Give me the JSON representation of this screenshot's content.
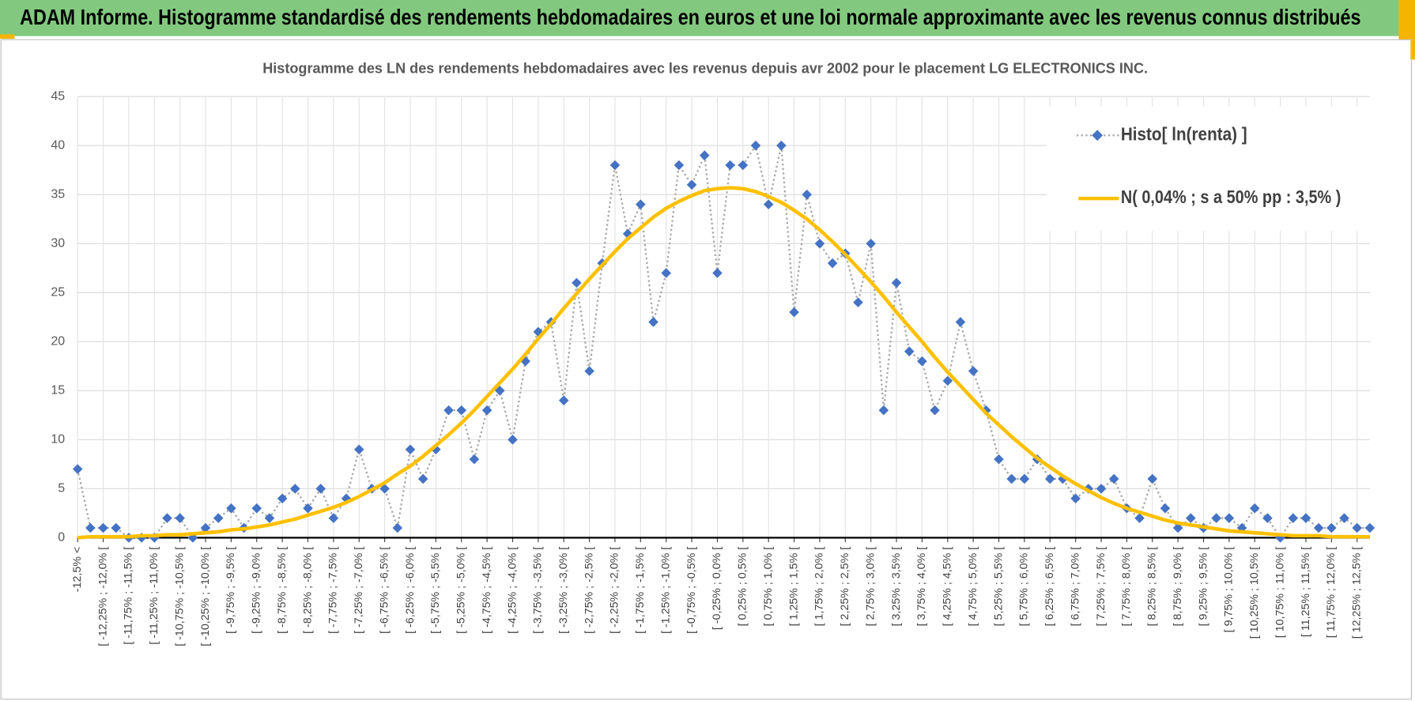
{
  "header": {
    "title": "ADAM Informe. Histogramme standardisé des rendements hebdomadaires en euros et une loi normale approximante avec les revenus connus distribués"
  },
  "chart_data": {
    "type": "line",
    "title": "Histogramme  des LN des rendements hebdomadaires avec les revenus depuis avr 2002 pour le placement LG ELECTRONICS INC.",
    "categories": [
      "-12,5% <",
      null,
      "[ -12,25% ; -12,0% [",
      null,
      "[ -11,75% ; -11,5% [",
      null,
      "[ -11,25% ; -11,0% [",
      null,
      "[ -10,75% ; -10,5% [",
      null,
      "[ -10,25% ; -10,0% [",
      null,
      "[ -9,75% ; -9,5% [",
      null,
      "[ -9,25% ; -9,0% [",
      null,
      "[ -8,75% ; -8,5% [",
      null,
      "[ -8,25% ; -8,0% [",
      null,
      "[ -7,75% ; -7,5% [",
      null,
      "[ -7,25% ; -7,0% [",
      null,
      "[ -6,75% ; -6,5% [",
      null,
      "[ -6,25% ; -6,0% [",
      null,
      "[ -5,75% ; -5,5% [",
      null,
      "[ -5,25% ; -5,0% [",
      null,
      "[ -4,75% ; -4,5% [",
      null,
      "[ -4,25% ; -4,0% [",
      null,
      "[ -3,75% ; -3,5% [",
      null,
      "[ -3,25% ; -3,0% [",
      null,
      "[ -2,75% ; -2,5% [",
      null,
      "[ -2,25% ; -2,0% [",
      null,
      "[ -1,75% ; -1,5% [",
      null,
      "[ -1,25% ; -1,0% [",
      null,
      "[ -0,75% ; -0,5% [",
      null,
      "[ -0,25% ; 0,0% [",
      null,
      "[ 0,25% ; 0,5% [",
      null,
      "[ 0,75% ; 1,0% [",
      null,
      "[ 1,25% ; 1,5% [",
      null,
      "[ 1,75% ; 2,0% [",
      null,
      "[ 2,25% ; 2,5% [",
      null,
      "[ 2,75% ; 3,0% [",
      null,
      "[ 3,25% ; 3,5% [",
      null,
      "[ 3,75% ; 4,0% [",
      null,
      "[ 4,25% ; 4,5% [",
      null,
      "[ 4,75% ; 5,0% [",
      null,
      "[ 5,25% ; 5,5% [",
      null,
      "[ 5,75% ; 6,0% [",
      null,
      "[ 6,25% ; 6,5% [",
      null,
      "[ 6,75% ; 7,0% [",
      null,
      "[ 7,25% ; 7,5% [",
      null,
      "[ 7,75% ; 8,0% [",
      null,
      "[ 8,25% ; 8,5% [",
      null,
      "[ 8,75% ; 9,0% [",
      null,
      "[ 9,25% ; 9,5% [",
      null,
      "[ 9,75% ; 10,0% [",
      null,
      "[ 10,25% ; 10,5% [",
      null,
      "[ 10,75% ; 11,0% [",
      null,
      "[ 11,25% ; 11,5% [",
      null,
      "[ 11,75% ; 12,0% [",
      null,
      "[ 12,25% ; 12,5% [",
      null
    ],
    "series": [
      {
        "name": "Histo[ ln(renta) ]",
        "color": "#4472c4",
        "line_color": "#a6a6a6",
        "values": [
          7,
          1,
          1,
          1,
          0,
          0,
          0,
          2,
          2,
          0,
          1,
          2,
          3,
          1,
          3,
          2,
          4,
          5,
          3,
          5,
          2,
          4,
          9,
          5,
          5,
          1,
          9,
          6,
          9,
          13,
          13,
          8,
          13,
          15,
          10,
          18,
          21,
          22,
          14,
          26,
          17,
          28,
          38,
          31,
          34,
          22,
          27,
          38,
          36,
          39,
          27,
          38,
          38,
          40,
          34,
          40,
          23,
          35,
          30,
          28,
          29,
          24,
          30,
          13,
          26,
          19,
          18,
          13,
          16,
          22,
          17,
          13,
          8,
          6,
          6,
          8,
          6,
          6,
          4,
          5,
          5,
          6,
          3,
          2,
          6,
          3,
          1,
          2,
          1,
          2,
          2,
          1,
          3,
          2,
          0,
          2,
          2,
          1,
          1,
          2,
          1,
          1
        ]
      },
      {
        "name": "N( 0,04% ; s a 50% pp : 3,5% )",
        "color": "#ffc000",
        "values": [
          0.0,
          0.1,
          0.1,
          0.1,
          0.1,
          0.2,
          0.2,
          0.3,
          0.3,
          0.4,
          0.5,
          0.6,
          0.8,
          0.9,
          1.1,
          1.3,
          1.6,
          1.9,
          2.3,
          2.7,
          3.1,
          3.6,
          4.2,
          4.9,
          5.6,
          6.5,
          7.3,
          8.3,
          9.4,
          10.5,
          11.7,
          13.0,
          14.4,
          15.8,
          17.2,
          18.7,
          20.3,
          21.8,
          23.4,
          24.9,
          26.4,
          27.8,
          29.2,
          30.5,
          31.6,
          32.7,
          33.6,
          34.3,
          34.9,
          35.4,
          35.6,
          35.7,
          35.6,
          35.3,
          34.8,
          34.2,
          33.4,
          32.5,
          31.4,
          30.2,
          28.9,
          27.5,
          26.1,
          24.6,
          23.0,
          21.5,
          20.0,
          18.4,
          16.9,
          15.5,
          14.1,
          12.7,
          11.5,
          10.3,
          9.2,
          8.1,
          7.2,
          6.3,
          5.5,
          4.8,
          4.1,
          3.5,
          3.0,
          2.6,
          2.2,
          1.8,
          1.5,
          1.3,
          1.1,
          0.9,
          0.7,
          0.6,
          0.5,
          0.4,
          0.3,
          0.2,
          0.2,
          0.2,
          0.1,
          0.1,
          0.1,
          0.1
        ]
      }
    ],
    "ylim": [
      0,
      45
    ],
    "yticks": [
      0,
      5,
      10,
      15,
      20,
      25,
      30,
      35,
      40,
      45
    ],
    "grid": true,
    "legend": "upper right"
  }
}
